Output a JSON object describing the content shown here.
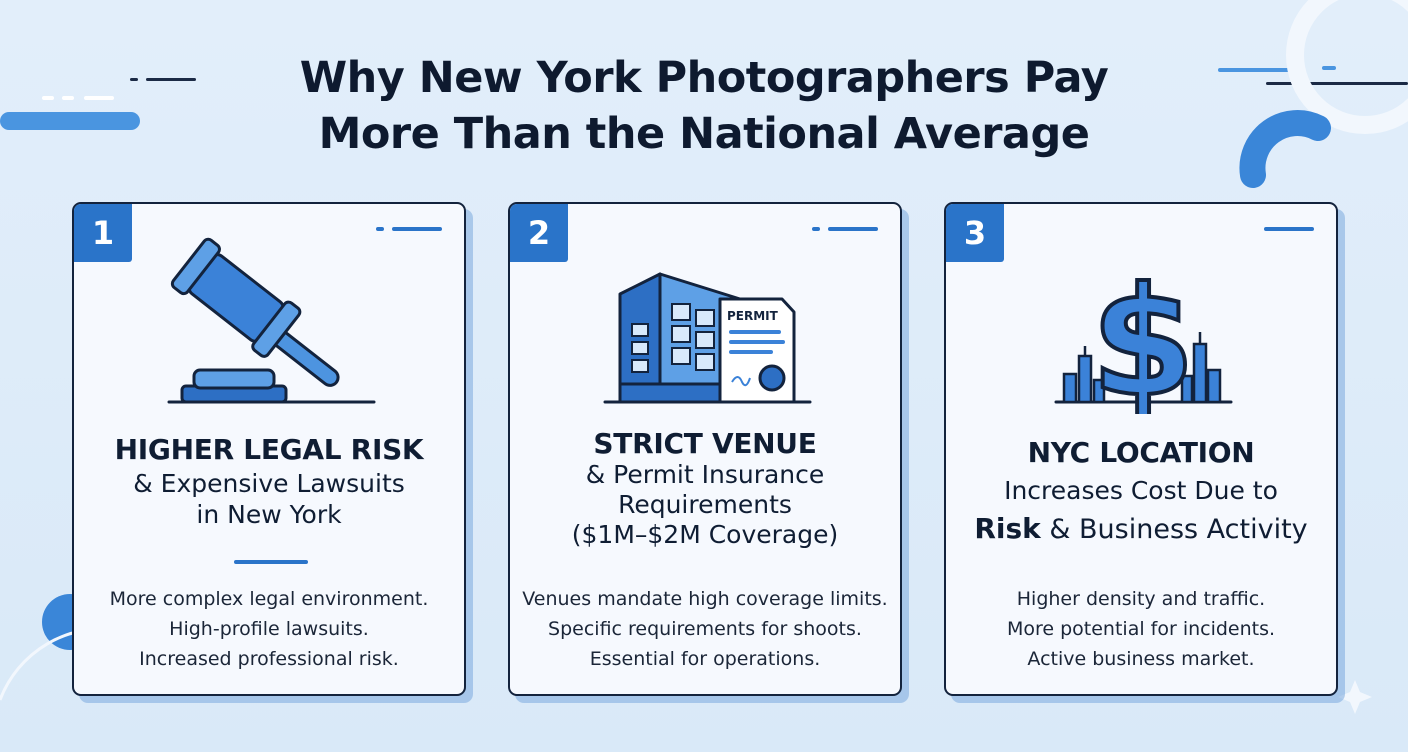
{
  "title": {
    "line1": "Why New York Photographers Pay",
    "line2": "More Than the National Average"
  },
  "cards": [
    {
      "number": "1",
      "icon": "gavel-icon",
      "heading": {
        "line1": "HIGHER LEGAL RISK",
        "line2": "& Expensive Lawsuits",
        "line3": "in New York"
      },
      "points": [
        "More complex legal environment.",
        "High-profile lawsuits.",
        "Increased professional risk."
      ]
    },
    {
      "number": "2",
      "icon": "building-permit-icon",
      "icon_label": "PERMIT",
      "heading": {
        "line1": "STRICT VENUE",
        "line2": "& Permit Insurance",
        "line3": "Requirements",
        "line4": "($1M–$2M Coverage)"
      },
      "points": [
        "Venues mandate high coverage limits.",
        "Specific requirements for shoots.",
        "Essential for operations."
      ]
    },
    {
      "number": "3",
      "icon": "dollar-skyline-icon",
      "heading": {
        "line1": "NYC LOCATION",
        "line2": "Increases Cost Due to",
        "line3_bold": "Risk",
        "line3_rest": " & Business Activity"
      },
      "points": [
        "Higher density and traffic.",
        "More potential for incidents.",
        "Active business market."
      ]
    }
  ],
  "colors": {
    "accent": "#2a74c9",
    "dark": "#13233d",
    "background": "#e2eefa"
  }
}
